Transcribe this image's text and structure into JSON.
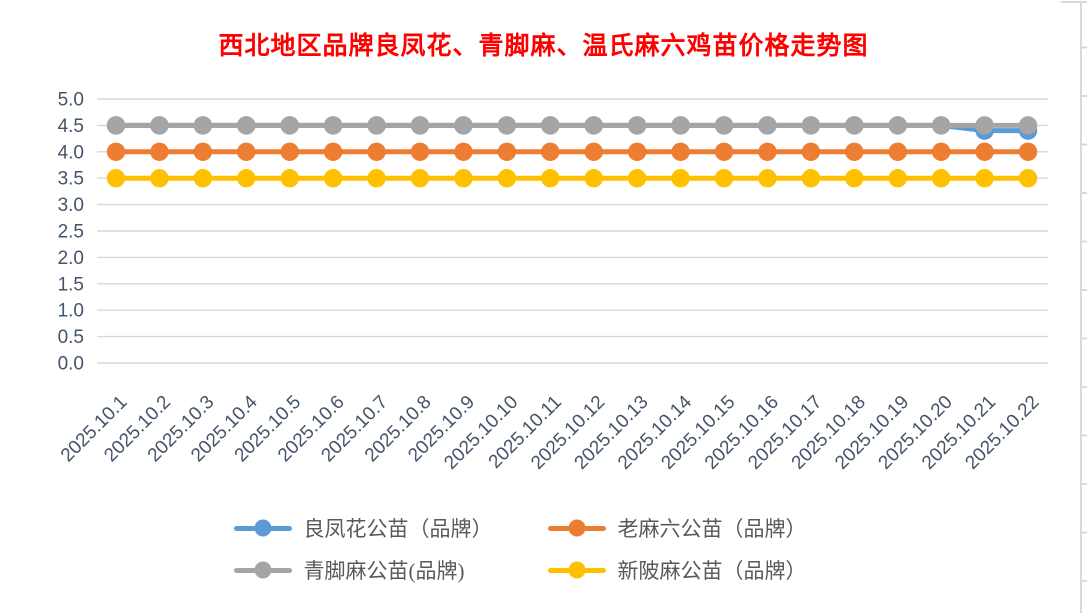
{
  "title": {
    "text": "西北地区品牌良凤花、青脚麻、温氏麻六鸡苗价格走势图"
  },
  "chart_data": {
    "type": "line",
    "title": "西北地区品牌良凤花、青脚麻、温氏麻六鸡苗价格走势图",
    "x": [
      "2025.10.1",
      "2025.10.2",
      "2025.10.3",
      "2025.10.4",
      "2025.10.5",
      "2025.10.6",
      "2025.10.7",
      "2025.10.8",
      "2025.10.9",
      "2025.10.10",
      "2025.10.11",
      "2025.10.12",
      "2025.10.13",
      "2025.10.14",
      "2025.10.15",
      "2025.10.16",
      "2025.10.17",
      "2025.10.18",
      "2025.10.19",
      "2025.10.20",
      "2025.10.21",
      "2025.10.22"
    ],
    "series": [
      {
        "name": "良凤花公苗（品牌）",
        "color": "#5B9BD5",
        "values": [
          4.5,
          4.5,
          4.5,
          4.5,
          4.5,
          4.5,
          4.5,
          4.5,
          4.5,
          4.5,
          4.5,
          4.5,
          4.5,
          4.5,
          4.5,
          4.5,
          4.5,
          4.5,
          4.5,
          4.5,
          4.4,
          4.4
        ]
      },
      {
        "name": "老麻六公苗（品牌）",
        "color": "#ED7D31",
        "values": [
          4.0,
          4.0,
          4.0,
          4.0,
          4.0,
          4.0,
          4.0,
          4.0,
          4.0,
          4.0,
          4.0,
          4.0,
          4.0,
          4.0,
          4.0,
          4.0,
          4.0,
          4.0,
          4.0,
          4.0,
          4.0,
          4.0
        ]
      },
      {
        "name": "青脚麻公苗(品牌)",
        "color": "#A5A5A5",
        "values": [
          4.5,
          4.5,
          4.5,
          4.5,
          4.5,
          4.5,
          4.5,
          4.5,
          4.5,
          4.5,
          4.5,
          4.5,
          4.5,
          4.5,
          4.5,
          4.5,
          4.5,
          4.5,
          4.5,
          4.5,
          4.5,
          4.5
        ]
      },
      {
        "name": "新陂麻公苗（品牌）",
        "color": "#FFC000",
        "values": [
          3.5,
          3.5,
          3.5,
          3.5,
          3.5,
          3.5,
          3.5,
          3.5,
          3.5,
          3.5,
          3.5,
          3.5,
          3.5,
          3.5,
          3.5,
          3.5,
          3.5,
          3.5,
          3.5,
          3.5,
          3.5,
          3.5
        ]
      }
    ],
    "ylim": [
      0.0,
      5.0
    ],
    "yticks": [
      "5.0",
      "4.5",
      "4.0",
      "3.5",
      "3.0",
      "2.5",
      "2.0",
      "1.5",
      "1.0",
      "0.5",
      "0.0"
    ],
    "grid": true,
    "legend_position": "bottom",
    "colors": {
      "chart_title": "#FF0000",
      "axis_labels": "#44546A",
      "gridlines": "#D9D9D9",
      "legend_text": "#595959",
      "sheet_lines": "#D9D9D9"
    }
  }
}
